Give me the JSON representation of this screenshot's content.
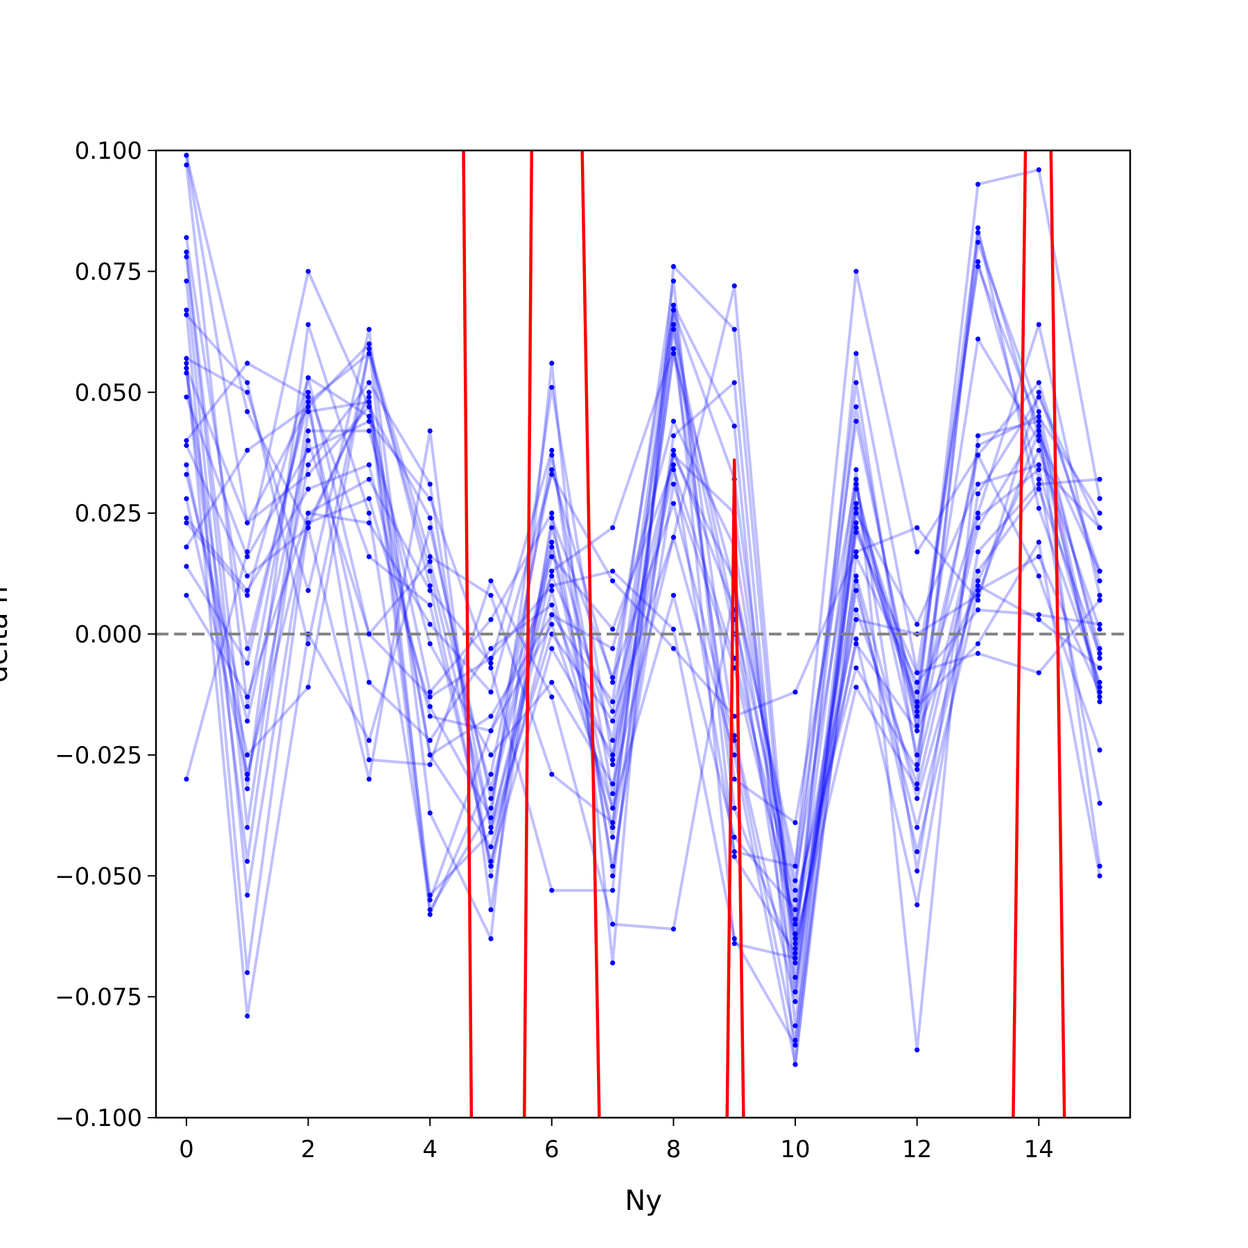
{
  "chart_data": {
    "type": "line",
    "title": "",
    "xlabel": "Ny",
    "ylabel": "delta n",
    "xlim": [
      -0.5,
      15.5
    ],
    "ylim": [
      -0.1,
      0.1
    ],
    "xticks": [
      0,
      2,
      4,
      6,
      8,
      10,
      12,
      14
    ],
    "xtick_labels": [
      "0",
      "2",
      "4",
      "6",
      "8",
      "10",
      "12",
      "14"
    ],
    "yticks": [
      -0.1,
      -0.075,
      -0.05,
      -0.025,
      0.0,
      0.025,
      0.05,
      0.075,
      0.1
    ],
    "ytick_labels": [
      "−0.100",
      "−0.075",
      "−0.050",
      "−0.025",
      "0.000",
      "0.025",
      "0.050",
      "0.075",
      "0.100"
    ],
    "grid": false,
    "legend": "none",
    "reference_line": {
      "y": 0.0,
      "style": "dashed",
      "color": "#808080"
    },
    "colors": {
      "series": "#0000ff",
      "series_opacity": 0.25,
      "mean": "#ff0000",
      "reference": "#808080"
    },
    "x": [
      0,
      1,
      2,
      3,
      4,
      5,
      6,
      7,
      8,
      9,
      10,
      11,
      12,
      13,
      14,
      15
    ],
    "series": [
      {
        "values": [
          0.099,
          0.023,
          0.047,
          0.06,
          -0.057,
          -0.036,
          0.037,
          -0.033,
          0.068,
          -0.021,
          -0.076,
          0.022,
          -0.014,
          0.083,
          0.041,
          0.013
        ]
      },
      {
        "values": [
          0.097,
          -0.015,
          0.053,
          0.045,
          -0.025,
          -0.044,
          0.004,
          -0.014,
          0.073,
          -0.046,
          -0.066,
          0.058,
          -0.008,
          0.076,
          0.043,
          -0.048
        ]
      },
      {
        "values": [
          0.082,
          -0.003,
          0.048,
          0.058,
          0.013,
          -0.04,
          0.009,
          -0.04,
          0.063,
          0.003,
          -0.053,
          0.052,
          -0.027,
          0.081,
          0.046,
          -0.005
        ]
      },
      {
        "values": [
          0.079,
          -0.03,
          0.035,
          0.052,
          0.031,
          -0.05,
          0.019,
          -0.036,
          0.058,
          0.01,
          -0.062,
          0.047,
          -0.02,
          0.061,
          0.04,
          -0.013
        ]
      },
      {
        "values": [
          0.078,
          -0.04,
          0.046,
          0.048,
          -0.058,
          -0.029,
          0.034,
          -0.01,
          0.068,
          0.043,
          -0.089,
          0.025,
          0.002,
          0.031,
          0.035,
          0.022
        ]
      },
      {
        "values": [
          0.073,
          -0.054,
          0.025,
          0.032,
          0.009,
          -0.006,
          0.038,
          -0.05,
          0.041,
          0.052,
          -0.081,
          0.027,
          -0.012,
          0.077,
          0.032,
          -0.035
        ]
      },
      {
        "values": [
          0.067,
          -0.07,
          0.023,
          0.028,
          -0.015,
          -0.038,
          0.051,
          -0.026,
          0.064,
          -0.064,
          -0.067,
          0.005,
          -0.031,
          0.084,
          0.026,
          -0.01
        ]
      },
      {
        "values": [
          0.057,
          0.05,
          0.009,
          0.063,
          -0.037,
          -0.063,
          0.056,
          -0.068,
          0.076,
          0.063,
          -0.074,
          0.03,
          -0.019,
          0.037,
          0.052,
          0.011
        ]
      },
      {
        "values": [
          0.056,
          -0.079,
          0.0,
          -0.022,
          0.022,
          -0.034,
          0.016,
          0.001,
          0.035,
          -0.045,
          -0.048,
          0.044,
          -0.017,
          0.093,
          0.096,
          0.028
        ]
      },
      {
        "values": [
          0.055,
          -0.032,
          0.064,
          0.025,
          -0.055,
          -0.02,
          0.012,
          -0.016,
          0.037,
          0.025,
          -0.063,
          0.034,
          -0.086,
          0.041,
          0.044,
          -0.012
        ]
      },
      {
        "values": [
          0.054,
          -0.047,
          0.042,
          0.042,
          -0.002,
          -0.025,
          -0.01,
          -0.031,
          0.02,
          0.072,
          -0.071,
          0.023,
          -0.016,
          0.025,
          0.064,
          0.008
        ]
      },
      {
        "values": [
          0.049,
          0.016,
          0.038,
          0.044,
          0.028,
          -0.007,
          -0.053,
          -0.053,
          0.067,
          0.032,
          -0.065,
          -0.001,
          -0.056,
          0.017,
          0.031,
          0.032
        ]
      },
      {
        "values": [
          0.04,
          0.056,
          0.049,
          -0.026,
          -0.027,
          0.011,
          -0.013,
          -0.06,
          -0.061,
          0.009,
          -0.048,
          0.075,
          0.017,
          0.037,
          0.012,
          -0.024
        ]
      },
      {
        "values": [
          0.039,
          0.012,
          0.022,
          -0.03,
          0.042,
          -0.057,
          0.024,
          -0.009,
          0.027,
          -0.022,
          -0.084,
          0.011,
          -0.045,
          0.009,
          0.016,
          -0.012
        ]
      },
      {
        "values": [
          0.035,
          -0.025,
          -0.011,
          0.059,
          0.016,
          0.008,
          -0.029,
          -0.039,
          0.059,
          0.0,
          -0.064,
          -0.011,
          -0.032,
          0.022,
          0.043,
          -0.003
        ]
      },
      {
        "values": [
          0.028,
          -0.029,
          0.023,
          0.049,
          -0.025,
          -0.017,
          0.004,
          -0.003,
          0.044,
          0.018,
          -0.059,
          0.012,
          -0.034,
          0.011,
          0.038,
          0.001
        ]
      },
      {
        "values": [
          0.023,
          0.008,
          0.053,
          0.0,
          -0.013,
          -0.005,
          0.01,
          0.013,
          0.001,
          -0.063,
          -0.085,
          0.031,
          -0.025,
          0.039,
          0.045,
          0.025
        ]
      },
      {
        "values": [
          0.018,
          0.038,
          0.047,
          -0.01,
          -0.022,
          -0.003,
          0.006,
          -0.027,
          0.034,
          -0.005,
          -0.055,
          -0.007,
          -0.028,
          0.024,
          0.034,
          -0.011
        ]
      },
      {
        "values": [
          0.014,
          -0.006,
          0.05,
          0.016,
          0.006,
          -0.047,
          -0.003,
          -0.025,
          0.037,
          0.011,
          -0.051,
          0.026,
          -0.015,
          -0.002,
          0.019,
          -0.05
        ]
      },
      {
        "values": [
          0.008,
          -0.013,
          0.025,
          0.023,
          0.002,
          -0.012,
          0.033,
          0.011,
          -0.003,
          -0.017,
          -0.012,
          0.017,
          0.022,
          0.007,
          0.05,
          0.013
        ]
      },
      {
        "values": [
          -0.03,
          0.017,
          0.075,
          0.047,
          0.024,
          -0.04,
          0.013,
          0.022,
          0.059,
          -0.03,
          -0.039,
          0.032,
          -0.049,
          0.029,
          0.049,
          0.022
        ]
      },
      {
        "values": [
          0.099,
          0.046,
          0.022,
          0.05,
          -0.054,
          -0.041,
          0.0,
          -0.018,
          0.02,
          -0.025,
          -0.089,
          0.016,
          -0.01,
          0.005,
          0.004,
          0.002
        ]
      },
      {
        "values": [
          0.066,
          0.052,
          -0.002,
          0.059,
          0.01,
          -0.048,
          0.022,
          -0.022,
          0.067,
          -0.036,
          -0.068,
          0.009,
          -0.04,
          0.013,
          0.03,
          -0.004
        ]
      },
      {
        "values": [
          0.055,
          0.023,
          0.033,
          0.047,
          -0.012,
          0.003,
          0.025,
          -0.048,
          0.031,
          -0.007,
          -0.06,
          -0.002,
          -0.02,
          0.01,
          0.003,
          -0.007
        ]
      },
      {
        "values": [
          0.033,
          -0.018,
          0.04,
          0.0,
          0.015,
          -0.032,
          0.018,
          -0.042,
          0.038,
          0.005,
          -0.074,
          0.021,
          -0.008,
          -0.004,
          -0.008,
          0.007
        ]
      },
      {
        "values": [
          0.024,
          0.009,
          0.03,
          0.035,
          -0.017,
          -0.02,
          0.002,
          -0.036,
          0.008,
          -0.042,
          -0.057,
          0.003,
          0.0,
          0.008,
          0.042,
          -0.014
        ]
      }
    ],
    "mean_segments": [
      {
        "x": [
          4.55,
          4.68
        ],
        "y": [
          0.1,
          -0.1
        ]
      },
      {
        "x": [
          5.55,
          5.67
        ],
        "y": [
          -0.1,
          0.1
        ]
      },
      {
        "x": [
          6.5,
          6.78
        ],
        "y": [
          0.1,
          -0.1
        ]
      },
      {
        "x": [
          8.88,
          9.0,
          9.15
        ],
        "y": [
          -0.1,
          0.036,
          -0.1
        ]
      },
      {
        "x": [
          13.58,
          13.78
        ],
        "y": [
          -0.1,
          0.1
        ]
      },
      {
        "x": [
          14.2,
          14.42
        ],
        "y": [
          0.1,
          -0.1
        ]
      }
    ]
  }
}
